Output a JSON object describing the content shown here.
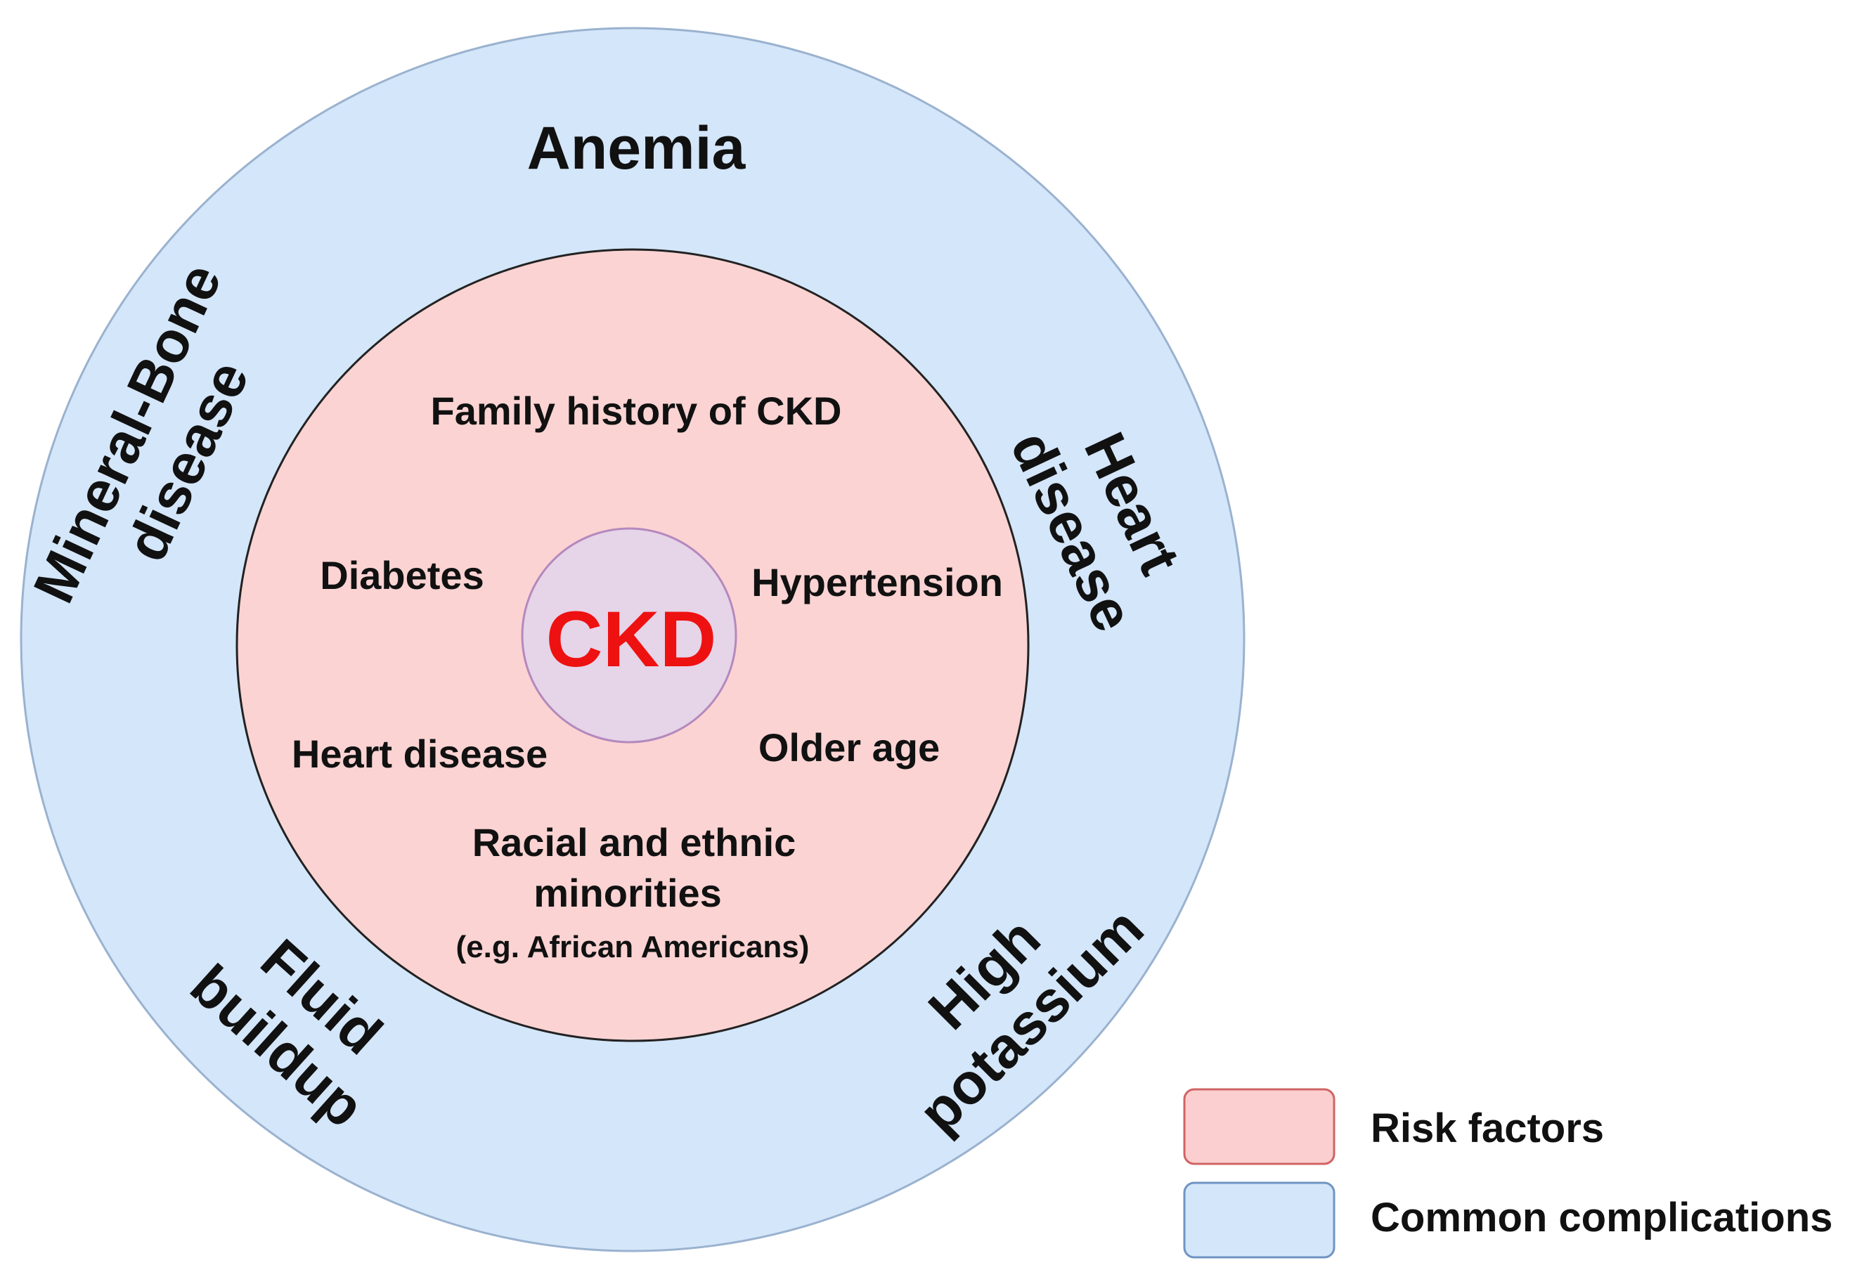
{
  "colors": {
    "outer_fill": "#d4e6f9",
    "outer_stroke": "#9ab2cf",
    "inner_fill": "#fbd3d3",
    "inner_stroke": "#222222",
    "center_fill": "#e6d4e8",
    "center_stroke": "#b489bd",
    "center_text": "#ee1111",
    "legend_risk_fill": "#fbcfcf",
    "legend_risk_stroke": "#d06464",
    "legend_comp_fill": "#d4e6f9",
    "legend_comp_stroke": "#6f94c3"
  },
  "center": {
    "label": "CKD"
  },
  "complications": {
    "top": "Anemia",
    "left_line1": "Mineral-Bone",
    "left_line2": "disease",
    "right_line1": "Heart",
    "right_line2": "disease",
    "bottom_left_line1": "Fluid",
    "bottom_left_line2": "buildup",
    "bottom_right_line1": "High",
    "bottom_right_line2": "potassium"
  },
  "risk_factors": {
    "family_history": "Family history of CKD",
    "diabetes": "Diabetes",
    "hypertension": "Hypertension",
    "heart_disease": "Heart disease",
    "older_age": "Older age",
    "minorities_line1": "Racial and ethnic",
    "minorities_line2": "minorities",
    "minorities_example": "(e.g. African Americans)"
  },
  "legend": {
    "risk_factors": "Risk factors",
    "common_complications": "Common complications"
  }
}
